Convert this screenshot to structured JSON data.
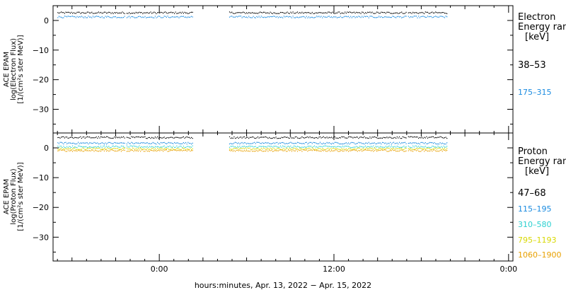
{
  "chart_data": [
    {
      "type": "scatter",
      "panel": "electron",
      "ylabel_lines": [
        "ACE EPAM",
        "log(Electron Flux)",
        "[1/(cm²s ster MeV)]"
      ],
      "legend_title_lines": [
        "Electron",
        "Energy ran",
        "[keV]"
      ],
      "ylim": [
        -38,
        5
      ],
      "yticks": [
        0,
        -10,
        -20,
        -30
      ],
      "ytick_labels": [
        "0",
        "−10",
        "−20",
        "−30"
      ],
      "series": [
        {
          "name": "38–53",
          "color": "#000000",
          "level": 2.6
        },
        {
          "name": "175–315",
          "color": "#1a8be0",
          "level": 1.2
        }
      ]
    },
    {
      "type": "scatter",
      "panel": "proton",
      "ylabel_lines": [
        "ACE EPAM",
        "log(Proton Flux)",
        "[1/(cm²s ster MeV)]"
      ],
      "legend_title_lines": [
        "Proton",
        "Energy ran",
        "[keV]"
      ],
      "ylim": [
        -38,
        5
      ],
      "yticks": [
        0,
        -10,
        -20,
        -30
      ],
      "ytick_labels": [
        "0",
        "−10",
        "−20",
        "−30"
      ],
      "series": [
        {
          "name": "47–68",
          "color": "#000000",
          "level": 3.5
        },
        {
          "name": "115–195",
          "color": "#1a8be0",
          "level": 1.6
        },
        {
          "name": "310–580",
          "color": "#2ad0d0",
          "level": 0.4
        },
        {
          "name": "795–1193",
          "color": "#d8d800",
          "level": -0.3
        },
        {
          "name": "1060–1900",
          "color": "#e8a000",
          "level": -0.9
        }
      ]
    }
  ],
  "x_axis": {
    "ticks": [
      0,
      12,
      24
    ],
    "tick_labels": [
      "0:00",
      "12:00",
      "0:00"
    ],
    "xlabel": "hours:minutes, Apr. 13, 2022 − Apr. 15, 2022",
    "xlim": [
      -7.3,
      24.3
    ],
    "data_segments": [
      [
        -7.0,
        2.3
      ],
      [
        4.8,
        19.8
      ]
    ],
    "small_gaps": [
      -2.35,
      17.0
    ]
  }
}
